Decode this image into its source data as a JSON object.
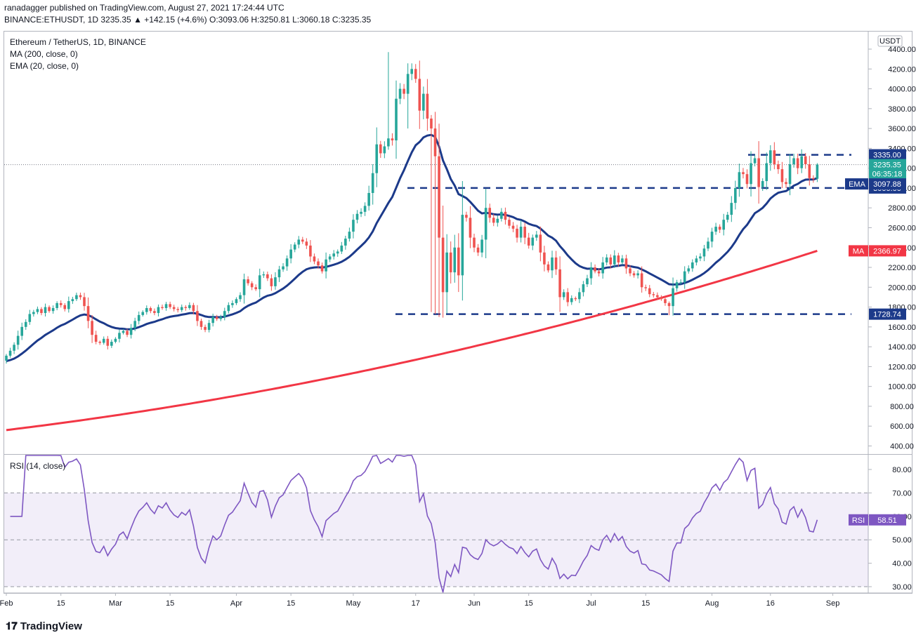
{
  "header": {
    "line1": "ranadagger published on TradingView.com, August 27, 2021 17:24:44 UTC",
    "line2_prefix": "BINANCE:ETHUSDT, 1D",
    "open": "3093.06",
    "high": "3250.81",
    "low": "3060.18",
    "close": "3235.35",
    "change": "+142.15 (+4.6%)",
    "line2": "BINANCE:ETHUSDT, 1D 3235.35 ▲ +142.15 (+4.6%) O:3093.06 H:3250.81 L:3060.18 C:3235.35"
  },
  "legend": {
    "symbol": "Ethereum / TetherUS, 1D, BINANCE",
    "ma": "MA (200, close, 0)",
    "ema": "EMA (20, close, 0)",
    "rsi": "RSI (14, close)"
  },
  "currency": "USDT",
  "branding": "TradingView",
  "colors": {
    "up": "#26a69a",
    "down": "#ef5350",
    "ema": "#1c3a8a",
    "ma": "#f23645",
    "rsi": "#7e57c2",
    "level": "#1c3a8a"
  },
  "chart_data": [
    {
      "type": "candlestick",
      "title": "Ethereum / TetherUS, 1D, BINANCE",
      "x_range": [
        "2021-02-01",
        "2021-08-31"
      ],
      "y_range": [
        300,
        4450
      ],
      "y_ticks": [
        "4400.00",
        "4200.00",
        "4000.00",
        "3800.00",
        "3600.00",
        "3400.00",
        "3200.00",
        "3000.00",
        "2800.00",
        "2600.00",
        "2400.00",
        "2200.00",
        "2000.00",
        "1800.00",
        "1600.00",
        "1400.00",
        "1200.00",
        "1000.00",
        "800.00",
        "600.00",
        "400.00"
      ],
      "x_ticks": [
        {
          "date": "2021-02-01",
          "label": "Feb"
        },
        {
          "date": "2021-02-15",
          "label": "15"
        },
        {
          "date": "2021-03-01",
          "label": "Mar"
        },
        {
          "date": "2021-03-15",
          "label": "15"
        },
        {
          "date": "2021-04-01",
          "label": "Apr"
        },
        {
          "date": "2021-04-15",
          "label": "15"
        },
        {
          "date": "2021-05-01",
          "label": "May"
        },
        {
          "date": "2021-05-17",
          "label": "17"
        },
        {
          "date": "2021-06-01",
          "label": "Jun"
        },
        {
          "date": "2021-06-15",
          "label": "15"
        },
        {
          "date": "2021-07-01",
          "label": "Jul"
        },
        {
          "date": "2021-07-15",
          "label": "15"
        },
        {
          "date": "2021-08-01",
          "label": "Aug"
        },
        {
          "date": "2021-08-16",
          "label": "16"
        },
        {
          "date": "2021-09-01",
          "label": "Sep"
        }
      ],
      "price_close": [
        1310,
        1360,
        1420,
        1510,
        1600,
        1650,
        1730,
        1750,
        1780,
        1740,
        1800,
        1760,
        1790,
        1840,
        1820,
        1780,
        1860,
        1880,
        1920,
        1900,
        1810,
        1660,
        1520,
        1450,
        1440,
        1480,
        1410,
        1450,
        1480,
        1540,
        1560,
        1520,
        1590,
        1660,
        1720,
        1750,
        1790,
        1760,
        1740,
        1800,
        1790,
        1830,
        1800,
        1780,
        1770,
        1800,
        1790,
        1820,
        1760,
        1660,
        1600,
        1570,
        1640,
        1700,
        1680,
        1700,
        1760,
        1820,
        1840,
        1880,
        1920,
        2080,
        2040,
        2000,
        1980,
        2120,
        2130,
        2090,
        2010,
        2100,
        2180,
        2210,
        2290,
        2380,
        2430,
        2480,
        2460,
        2420,
        2310,
        2260,
        2220,
        2160,
        2280,
        2310,
        2340,
        2360,
        2420,
        2490,
        2560,
        2680,
        2740,
        2760,
        2820,
        2950,
        3150,
        3440,
        3350,
        3420,
        3500,
        3480,
        3900,
        4000,
        3950,
        4150,
        4200,
        4100,
        3780,
        3950,
        3700,
        3600,
        3320,
        2500,
        1950,
        2350,
        2150,
        2400,
        2120,
        2730,
        2700,
        2500,
        2400,
        2350,
        2480,
        2800,
        2700,
        2650,
        2690,
        2760,
        2680,
        2620,
        2590,
        2500,
        2610,
        2500,
        2420,
        2500,
        2530,
        2350,
        2230,
        2170,
        2300,
        2180,
        1900,
        1950,
        1850,
        1890,
        1880,
        1950,
        2030,
        2090,
        2200,
        2160,
        2140,
        2250,
        2300,
        2230,
        2320,
        2250,
        2290,
        2190,
        2140,
        2120,
        2140,
        2000,
        1990,
        1930,
        1920,
        1900,
        1880,
        1840,
        1810,
        1990,
        2050,
        2050,
        2160,
        2190,
        2250,
        2290,
        2310,
        2390,
        2460,
        2560,
        2610,
        2580,
        2680,
        2730,
        2850,
        3000,
        3160,
        3140,
        3040,
        3250,
        3300,
        3010,
        3070,
        3250,
        3380,
        3240,
        3190,
        3060,
        3040,
        3240,
        3300,
        3200,
        3320,
        3240,
        3100,
        3090,
        3235.35
      ],
      "series": [
        {
          "name": "MA (200, close, 0)",
          "last": "2366.97"
        },
        {
          "name": "EMA (20, close, 0)",
          "last": "3097.88"
        }
      ],
      "levels": [
        {
          "label": "3335.00",
          "value": 3335
        },
        {
          "label": "3000.00",
          "value": 3000
        },
        {
          "label": "1728.74",
          "value": 1728.74
        }
      ],
      "last_price": {
        "value": "3235.35",
        "countdown": "06:35:18"
      },
      "badges": [
        {
          "name": "EMA",
          "value": "3097.88"
        },
        {
          "name": "MA",
          "value": "2366.97"
        }
      ]
    },
    {
      "type": "line",
      "title": "RSI (14, close)",
      "y_range": [
        25,
        85
      ],
      "y_ticks": [
        "80.00",
        "70.00",
        "60.00",
        "50.00",
        "40.00",
        "30.00"
      ],
      "band": [
        30,
        70
      ],
      "midline": 50,
      "series": [
        {
          "name": "RSI (14, close)",
          "last": "58.51"
        }
      ]
    }
  ]
}
